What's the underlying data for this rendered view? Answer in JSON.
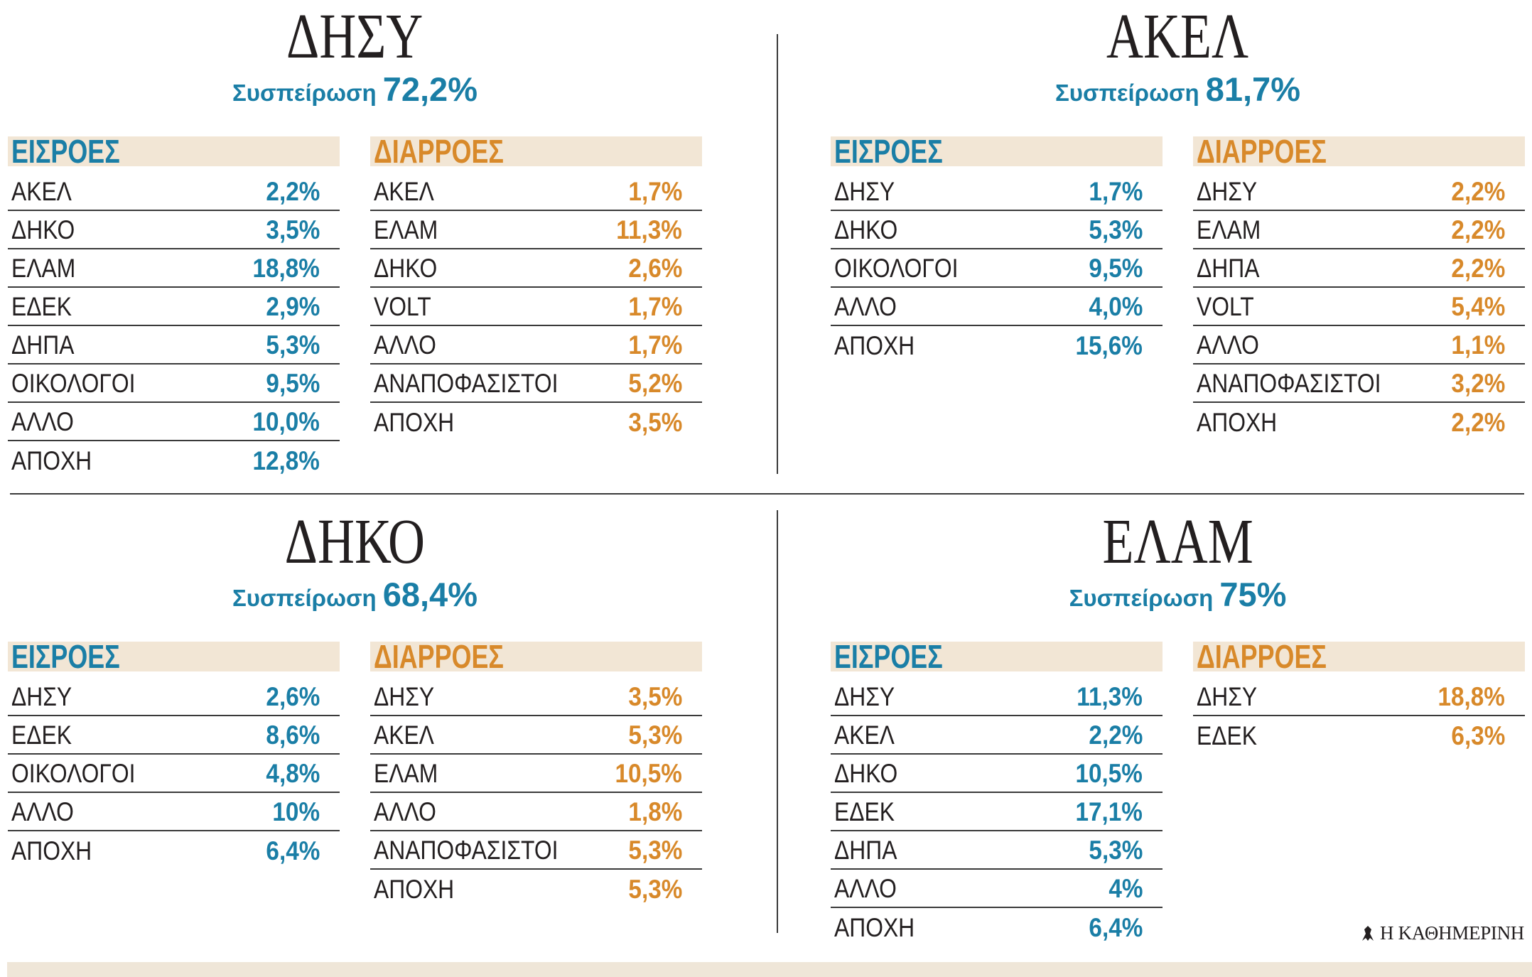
{
  "colors": {
    "inflow": "#1a7ea6",
    "outflow": "#d8892a",
    "header_bg": "#f2e6d5",
    "text": "#231f20",
    "rule": "#3a3a3a",
    "strip": "#efe6d8"
  },
  "chart_data": [
    {
      "type": "table",
      "title": "ΔΗΣΥ",
      "cohesion": {
        "label": "Συσπείρωση",
        "value": "72,2%"
      },
      "inflows": {
        "header": "ΕΙΣΡΟΕΣ",
        "rows": [
          {
            "party": "ΑΚΕΛ",
            "value": "2,2%"
          },
          {
            "party": "ΔΗΚΟ",
            "value": "3,5%"
          },
          {
            "party": "ΕΛΑΜ",
            "value": "18,8%"
          },
          {
            "party": "ΕΔΕΚ",
            "value": "2,9%"
          },
          {
            "party": "ΔΗΠΑ",
            "value": "5,3%"
          },
          {
            "party": "ΟΙΚΟΛΟΓΟΙ",
            "value": "9,5%"
          },
          {
            "party": "ΑΛΛΟ",
            "value": "10,0%"
          },
          {
            "party": "ΑΠΟΧΗ",
            "value": "12,8%"
          }
        ]
      },
      "outflows": {
        "header": "ΔΙΑΡΡΟΕΣ",
        "rows": [
          {
            "party": "ΑΚΕΛ",
            "value": "1,7%"
          },
          {
            "party": "ΕΛΑΜ",
            "value": "11,3%"
          },
          {
            "party": "ΔΗΚΟ",
            "value": "2,6%"
          },
          {
            "party": "VOLT",
            "value": "1,7%"
          },
          {
            "party": "ΑΛΛΟ",
            "value": "1,7%"
          },
          {
            "party": "ΑΝΑΠΟΦΑΣΙΣΤΟΙ",
            "value": "5,2%"
          },
          {
            "party": "ΑΠΟΧΗ",
            "value": "3,5%"
          }
        ]
      }
    },
    {
      "type": "table",
      "title": "ΑΚΕΛ",
      "cohesion": {
        "label": "Συσπείρωση",
        "value": "81,7%"
      },
      "inflows": {
        "header": "ΕΙΣΡΟΕΣ",
        "rows": [
          {
            "party": "ΔΗΣΥ",
            "value": "1,7%"
          },
          {
            "party": "ΔΗΚΟ",
            "value": "5,3%"
          },
          {
            "party": "ΟΙΚΟΛΟΓΟΙ",
            "value": "9,5%"
          },
          {
            "party": "ΑΛΛΟ",
            "value": "4,0%"
          },
          {
            "party": "ΑΠΟΧΗ",
            "value": "15,6%"
          }
        ]
      },
      "outflows": {
        "header": "ΔΙΑΡΡΟΕΣ",
        "rows": [
          {
            "party": "ΔΗΣΥ",
            "value": "2,2%"
          },
          {
            "party": "ΕΛΑΜ",
            "value": "2,2%"
          },
          {
            "party": "ΔΗΠΑ",
            "value": "2,2%"
          },
          {
            "party": "VOLT",
            "value": "5,4%"
          },
          {
            "party": "ΑΛΛΟ",
            "value": "1,1%"
          },
          {
            "party": "ΑΝΑΠΟΦΑΣΙΣΤΟΙ",
            "value": "3,2%"
          },
          {
            "party": "ΑΠΟΧΗ",
            "value": "2,2%"
          }
        ]
      }
    },
    {
      "type": "table",
      "title": "ΔΗΚΟ",
      "cohesion": {
        "label": "Συσπείρωση",
        "value": "68,4%"
      },
      "inflows": {
        "header": "ΕΙΣΡΟΕΣ",
        "rows": [
          {
            "party": "ΔΗΣΥ",
            "value": "2,6%"
          },
          {
            "party": "ΕΔΕΚ",
            "value": "8,6%"
          },
          {
            "party": "ΟΙΚΟΛΟΓΟΙ",
            "value": "4,8%"
          },
          {
            "party": "ΑΛΛΟ",
            "value": "10%"
          },
          {
            "party": "ΑΠΟΧΗ",
            "value": "6,4%"
          }
        ]
      },
      "outflows": {
        "header": "ΔΙΑΡΡΟΕΣ",
        "rows": [
          {
            "party": "ΔΗΣΥ",
            "value": "3,5%"
          },
          {
            "party": "ΑΚΕΛ",
            "value": "5,3%"
          },
          {
            "party": "ΕΛΑΜ",
            "value": "10,5%"
          },
          {
            "party": "ΑΛΛΟ",
            "value": "1,8%"
          },
          {
            "party": "ΑΝΑΠΟΦΑΣΙΣΤΟΙ",
            "value": "5,3%"
          },
          {
            "party": "ΑΠΟΧΗ",
            "value": "5,3%"
          }
        ]
      }
    },
    {
      "type": "table",
      "title": "ΕΛΑΜ",
      "cohesion": {
        "label": "Συσπείρωση",
        "value": "75%"
      },
      "inflows": {
        "header": "ΕΙΣΡΟΕΣ",
        "rows": [
          {
            "party": "ΔΗΣΥ",
            "value": "11,3%"
          },
          {
            "party": "ΑΚΕΛ",
            "value": "2,2%"
          },
          {
            "party": "ΔΗΚΟ",
            "value": "10,5%"
          },
          {
            "party": "ΕΔΕΚ",
            "value": "17,1%"
          },
          {
            "party": "ΔΗΠΑ",
            "value": "5,3%"
          },
          {
            "party": "ΑΛΛΟ",
            "value": "4%"
          },
          {
            "party": "ΑΠΟΧΗ",
            "value": "6,4%"
          }
        ]
      },
      "outflows": {
        "header": "ΔΙΑΡΡΟΕΣ",
        "rows": [
          {
            "party": "ΔΗΣΥ",
            "value": "18,8%"
          },
          {
            "party": "ΕΔΕΚ",
            "value": "6,3%"
          }
        ]
      }
    }
  ],
  "logo": {
    "emblem_icon": "emblem-icon",
    "text": "Η ΚΑΘΗΜΕΡΙΝΗ"
  }
}
